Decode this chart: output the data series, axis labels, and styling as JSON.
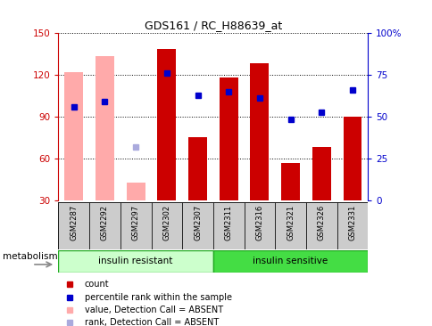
{
  "title": "GDS161 / RC_H88639_at",
  "samples": [
    "GSM2287",
    "GSM2292",
    "GSM2297",
    "GSM2302",
    "GSM2307",
    "GSM2311",
    "GSM2316",
    "GSM2321",
    "GSM2326",
    "GSM2331"
  ],
  "count_values": [
    null,
    null,
    null,
    138,
    75,
    118,
    128,
    57,
    68,
    90
  ],
  "absent_bar_values": [
    122,
    133,
    43,
    null,
    null,
    null,
    null,
    null,
    null,
    null
  ],
  "rank_blue_values": [
    97,
    101,
    null,
    121,
    105,
    108,
    103,
    88,
    93,
    109
  ],
  "rank_absent_values": [
    null,
    null,
    68,
    null,
    null,
    null,
    null,
    null,
    null,
    null
  ],
  "ylim_left": [
    30,
    150
  ],
  "ylim_right": [
    0,
    100
  ],
  "yticks_left": [
    30,
    60,
    90,
    120,
    150
  ],
  "yticks_right": [
    0,
    25,
    50,
    75,
    100
  ],
  "group1_label": "insulin resistant",
  "group2_label": "insulin sensitive",
  "group1_indices": [
    0,
    1,
    2,
    3,
    4
  ],
  "group2_indices": [
    5,
    6,
    7,
    8,
    9
  ],
  "metabolism_label": "metabolism",
  "legend_items": [
    {
      "label": "count",
      "color": "#cc0000"
    },
    {
      "label": "percentile rank within the sample",
      "color": "#0000cc"
    },
    {
      "label": "value, Detection Call = ABSENT",
      "color": "#ffaaaa"
    },
    {
      "label": "rank, Detection Call = ABSENT",
      "color": "#aaaadd"
    }
  ],
  "bar_color_present": "#cc0000",
  "bar_color_absent": "#ffaaaa",
  "dot_color_present": "#0000cc",
  "dot_color_absent": "#aaaadd",
  "group1_bg": "#ccffcc",
  "group2_bg": "#44dd44",
  "tick_label_bg": "#cccccc",
  "plot_bg": "#ffffff"
}
